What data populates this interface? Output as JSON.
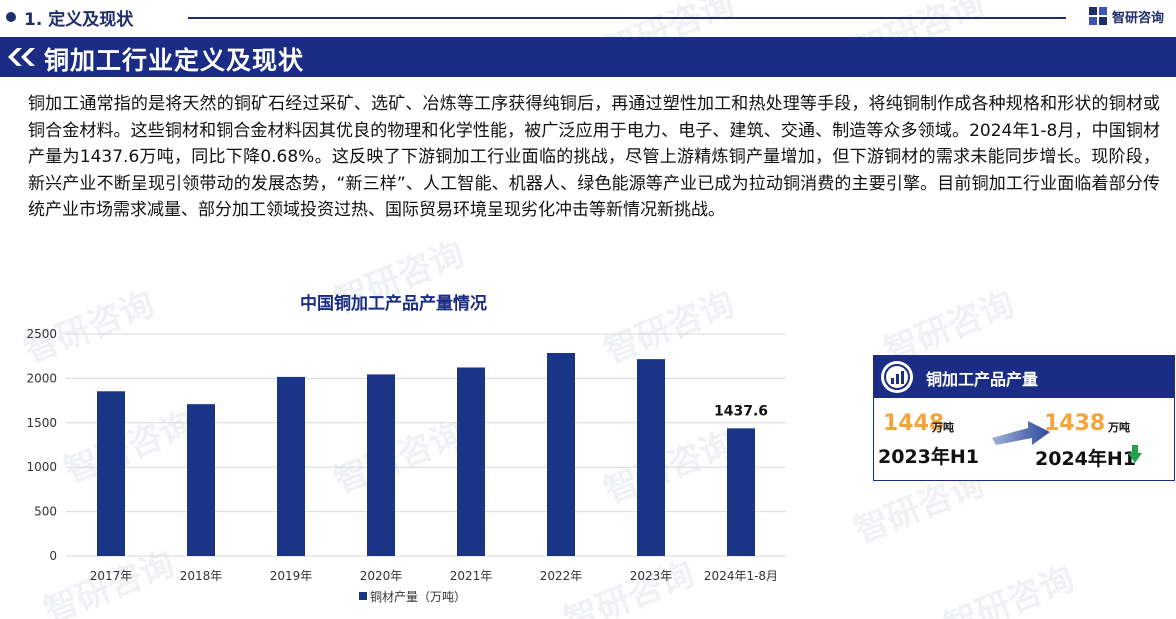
{
  "header": {
    "section_title": "1. 定义及现状",
    "logo_text": "智研咨询"
  },
  "banner": {
    "title": "铜加工行业定义及现状"
  },
  "paragraph": "铜加工通常指的是将天然的铜矿石经过采矿、选矿、冶炼等工序获得纯铜后，再通过塑性加工和热处理等手段，将纯铜制作成各种规格和形状的铜材或铜合金材料。这些铜材和铜合金材料因其优良的物理和化学性能，被广泛应用于电力、电子、建筑、交通、制造等众多领域。2024年1-8月，中国铜材产量为1437.6万吨，同比下降0.68%。这反映了下游铜加工行业面临的挑战，尽管上游精炼铜产量增加，但下游铜材的需求未能同步增长。现阶段，新兴产业不断呈现引领带动的发展态势，“新三样”、人工智能、机器人、绿色能源等产业已成为拉动铜消费的主要引擎。目前铜加工行业面临着部分传统产业市场需求减量、部分加工领域投资过热、国际贸易环境呈现劣化冲击等新情况新挑战。",
  "watermark": "智研咨询",
  "chart_data": {
    "type": "bar",
    "title": "中国铜加工产品产量情况",
    "categories": [
      "2017年",
      "2018年",
      "2019年",
      "2020年",
      "2021年",
      "2022年",
      "2023年",
      "2024年1-8月"
    ],
    "series": [
      {
        "name": "铜材产量（万吨）",
        "values": [
          1855,
          1710,
          2017,
          2045,
          2123,
          2286,
          2217,
          1437.6
        ],
        "data_labels": [
          null,
          null,
          null,
          null,
          null,
          null,
          null,
          "1437.6"
        ]
      }
    ],
    "ylim": [
      0,
      2500
    ],
    "yticks": [
      0,
      500,
      1000,
      1500,
      2000,
      2500
    ],
    "grid": true,
    "legend": "bottom",
    "bar_color": "#1a3586"
  },
  "card": {
    "title": "铜加工产品产量",
    "left_value": "1448",
    "left_unit": "万吨",
    "left_period": "2023年H1",
    "right_value": "1438",
    "right_unit": "万吨",
    "right_period": "2024年H1",
    "trend": "down",
    "icon": "chart-icon"
  },
  "colors": {
    "navy": "#1a2c84",
    "orange": "#f3a43a",
    "green": "#1fa24a"
  }
}
